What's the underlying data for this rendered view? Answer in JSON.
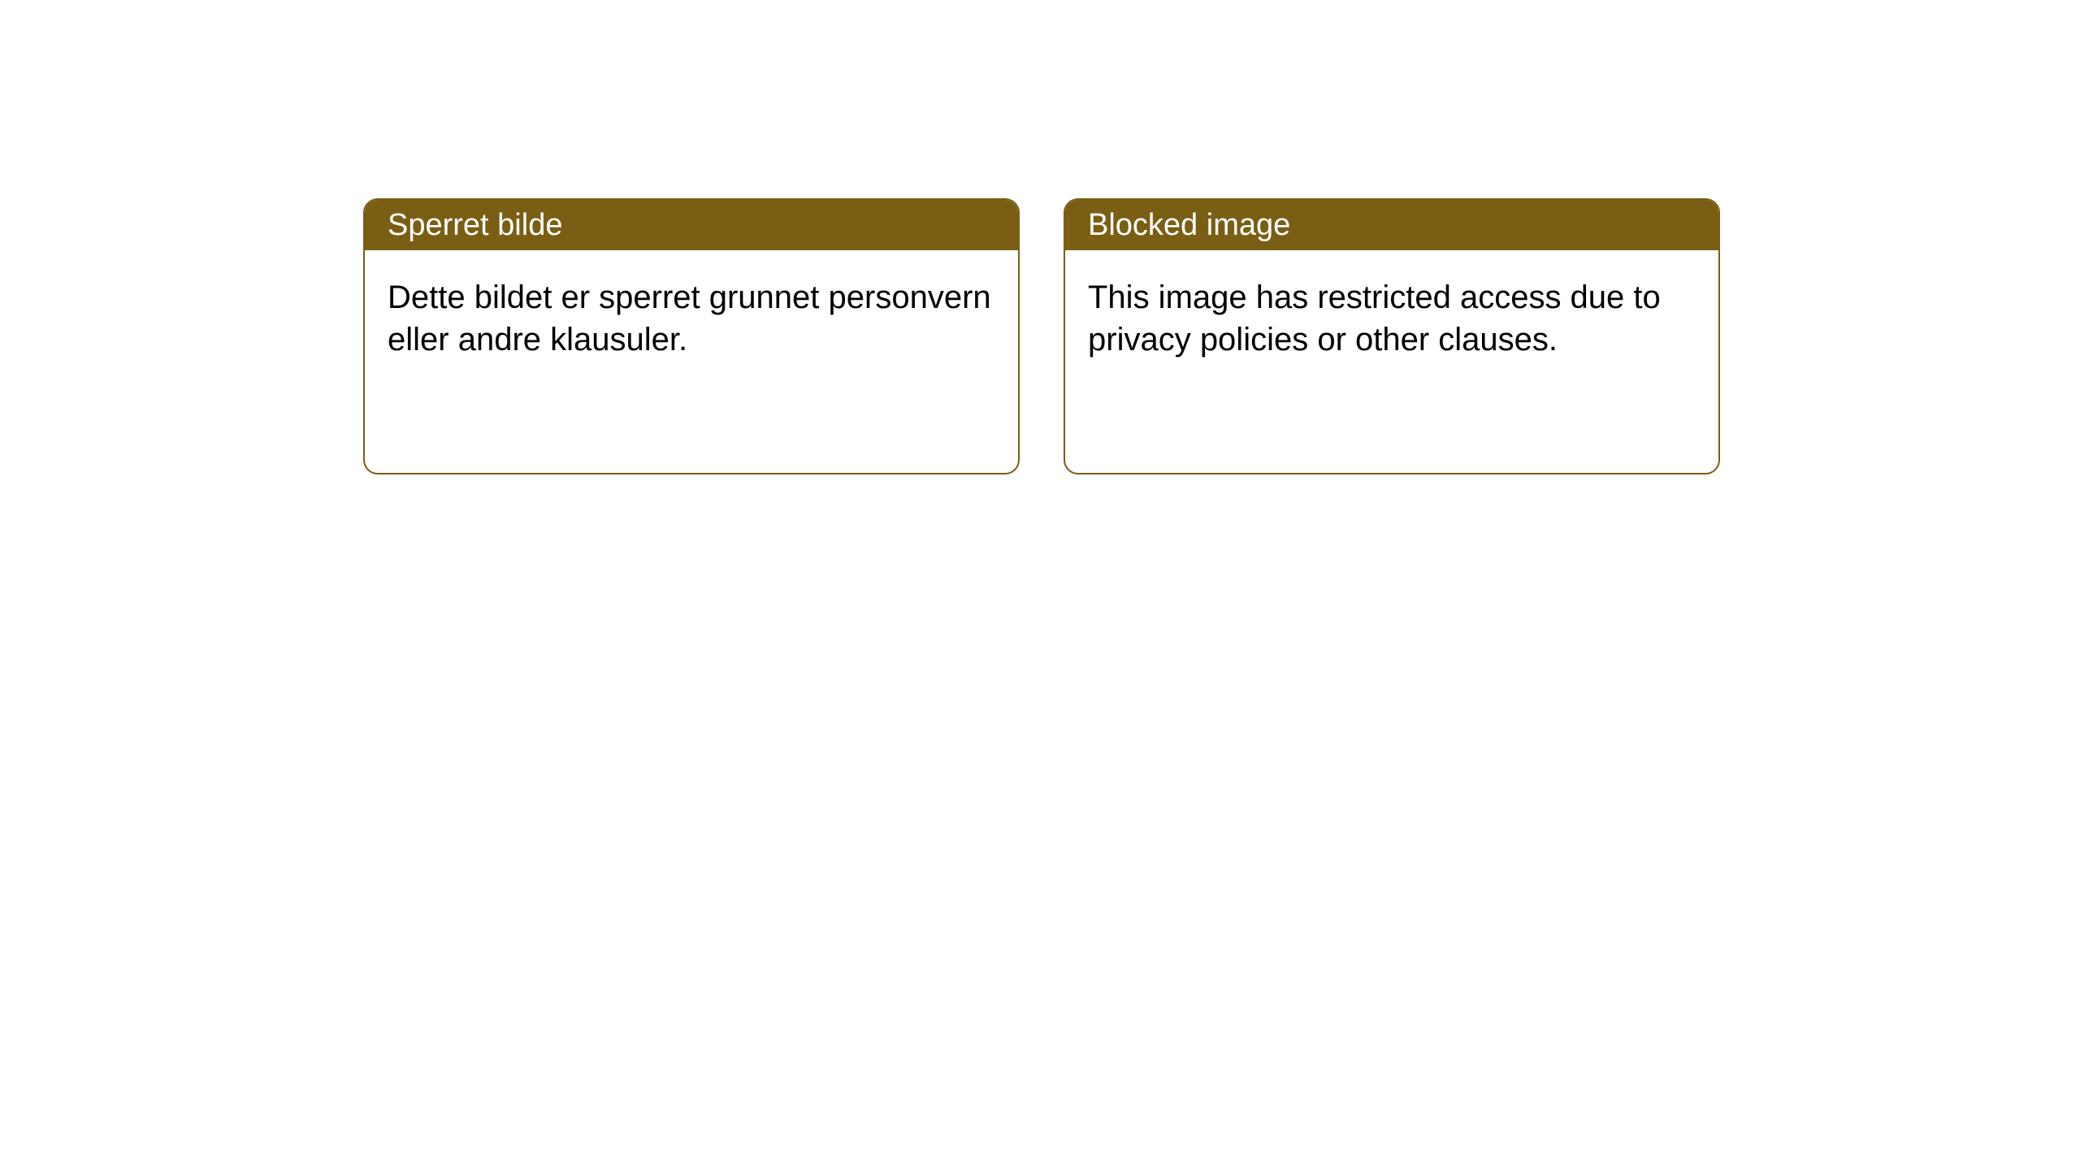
{
  "cards": [
    {
      "title": "Sperret bilde",
      "body": "Dette bildet er sperret grunnet personvern eller andre klausuler."
    },
    {
      "title": "Blocked image",
      "body": "This image has restricted access due to privacy policies or other clauses."
    }
  ],
  "style": {
    "header_bg": "#7a5e13",
    "header_text_color": "#ffffff",
    "border_color": "#7a5e13",
    "body_text_color": "#000000",
    "background_color": "#ffffff",
    "border_radius": 18,
    "header_fontsize": 38,
    "body_fontsize": 40
  }
}
